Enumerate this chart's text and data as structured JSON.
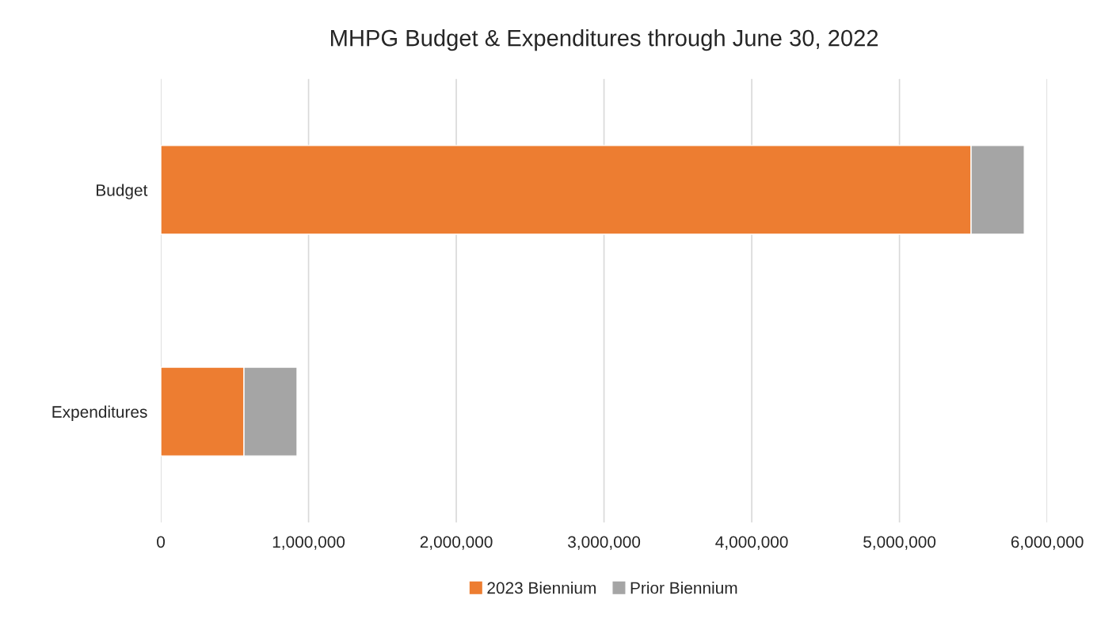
{
  "chart_data": {
    "type": "bar",
    "title": "MHPG Budget & Expenditures through June 30, 2022",
    "orientation": "horizontal",
    "stacked": true,
    "categories": [
      "Budget",
      "Expenditures"
    ],
    "series": [
      {
        "name": "2023 Biennium",
        "color": "#ed7d31",
        "values": [
          5485000,
          563000
        ]
      },
      {
        "name": "Prior Biennium",
        "color": "#a5a5a5",
        "values": [
          360000,
          359000
        ]
      }
    ],
    "xlim": [
      0,
      6000000
    ],
    "xticks": [
      {
        "value": 0,
        "label": "0"
      },
      {
        "value": 1000000,
        "label": "1,000,000"
      },
      {
        "value": 2000000,
        "label": "2,000,000"
      },
      {
        "value": 3000000,
        "label": "3,000,000"
      },
      {
        "value": 4000000,
        "label": "4,000,000"
      },
      {
        "value": 5000000,
        "label": "5,000,000"
      },
      {
        "value": 6000000,
        "label": "6,000,000"
      }
    ],
    "grid": "x",
    "legend": "bottom"
  }
}
